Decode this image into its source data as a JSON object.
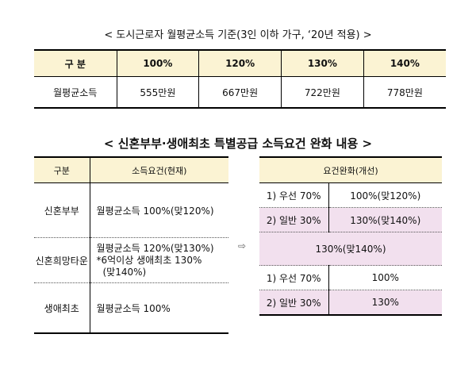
{
  "table1": {
    "title": "< 도시근로자 월평균소득 기준(3인 이하 가구, ‘20년 적용) >",
    "headers": [
      "구 분",
      "100%",
      "120%",
      "130%",
      "140%"
    ],
    "row": [
      "월평균소득",
      "555만원",
      "667만원",
      "722만원",
      "778만원"
    ]
  },
  "section2": {
    "title": "< 신혼부부·생애최초 특별공급 소득요건 완화 내용 >",
    "arrow": "⇨"
  },
  "current_table": {
    "headers": [
      "구분",
      "소득요건(현재)"
    ],
    "rows": [
      {
        "type": "신혼부부",
        "lines": [
          "월평균소득 100%(맞120%)"
        ]
      },
      {
        "type": "신혼희망타운",
        "lines": [
          "월평균소득 120%(맞130%)",
          "*6억이상 생애최초 130%",
          "(맞140%)"
        ]
      },
      {
        "type": "생애최초",
        "lines": [
          "월평균소득 100%"
        ]
      }
    ]
  },
  "relaxed_table": {
    "header": "요건완화(개선)",
    "rows": [
      {
        "label": "1) 우선 70%",
        "value": "100%(맞120%)"
      },
      {
        "label": "2) 일반 30%",
        "value": "130%(맞140%)"
      },
      {
        "merged": "130%(맞140%)"
      },
      {
        "label": "1) 우선 70%",
        "value": "100%"
      },
      {
        "label": "2) 일반 30%",
        "value": "130%"
      }
    ]
  },
  "colors": {
    "header_bg": "#fbf3d3",
    "highlight_bg": "#f2e0ee"
  }
}
